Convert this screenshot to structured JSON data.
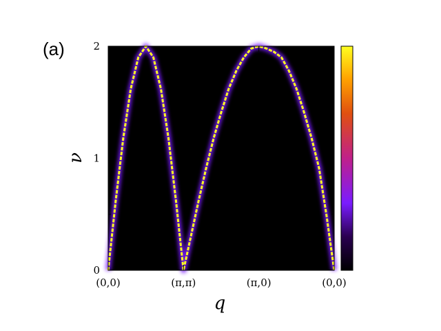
{
  "panel_label": "(a)",
  "chart_data": {
    "type": "heatmap",
    "title": "",
    "xlabel": "q",
    "ylabel": "ν",
    "x_ticks": [
      "(0,0)",
      "(π,π)",
      "(π,0)",
      "(0,0)"
    ],
    "y_ticks": [
      "0",
      "1",
      "2"
    ],
    "ylim": [
      0,
      2
    ],
    "background_color": "#000000",
    "colormap": [
      "#000000",
      "#2a0050",
      "#7a1cff",
      "#c0208a",
      "#e05010",
      "#ffa000",
      "#ffff20"
    ],
    "colorbar": true,
    "grid": false,
    "dispersion_curve": {
      "x": [
        0.0,
        0.1,
        0.2,
        0.3,
        0.4,
        0.5,
        0.6,
        0.7,
        0.8,
        0.9,
        1.0,
        1.1,
        1.2,
        1.3,
        1.4,
        1.5,
        1.6,
        1.7,
        1.8,
        1.9,
        2.0,
        2.1,
        2.2,
        2.3,
        2.4,
        2.5,
        2.6,
        2.7,
        2.8,
        2.9,
        3.0
      ],
      "x_tick_positions": [
        0,
        1,
        2,
        3
      ],
      "y": [
        0.0,
        0.62,
        1.18,
        1.62,
        1.9,
        2.0,
        1.9,
        1.62,
        1.18,
        0.62,
        0.0,
        0.31,
        0.62,
        0.91,
        1.18,
        1.41,
        1.62,
        1.78,
        1.9,
        1.98,
        2.0,
        1.98,
        1.95,
        1.9,
        1.78,
        1.62,
        1.41,
        1.18,
        0.91,
        0.48,
        0.0
      ]
    }
  }
}
